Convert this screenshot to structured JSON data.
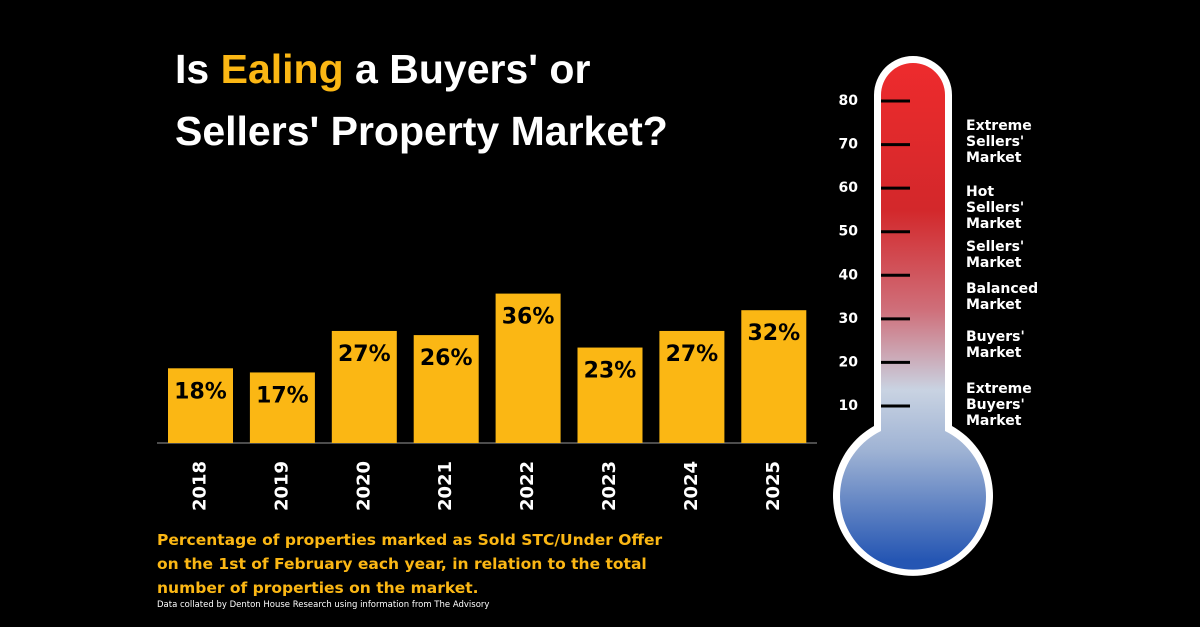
{
  "chart_data": {
    "type": "bar",
    "title": {
      "prefix": "Is",
      "highlight": "Ealing",
      "rest": "a Buyers' or",
      "line2": "Sellers' Property Market?"
    },
    "categories": [
      "2018",
      "2019",
      "2020",
      "2021",
      "2022",
      "2023",
      "2024",
      "2025"
    ],
    "values": [
      18,
      17,
      27,
      26,
      36,
      23,
      27,
      32
    ],
    "value_labels": [
      "18%",
      "17%",
      "27%",
      "26%",
      "36%",
      "23%",
      "27%",
      "32%"
    ],
    "color": "#fbb714",
    "caption": "Percentage of properties marked as Sold STC/Under Offer on the 1st of February each year, in relation to the total number of properties on the market.",
    "source": "Data collated by Denton House Research using information from The Advisory"
  },
  "thermometer": {
    "yticks": [
      10,
      20,
      30,
      40,
      50,
      60,
      70,
      80
    ],
    "zones": [
      [
        "Extreme",
        "Sellers'",
        "Market"
      ],
      [
        "Hot",
        "Sellers'",
        "Market"
      ],
      [
        "Sellers'",
        "Market"
      ],
      [
        "Balanced",
        "Market"
      ],
      [
        "Buyers'",
        "Market"
      ],
      [
        "Extreme",
        "Buyers'",
        "Market"
      ]
    ]
  }
}
